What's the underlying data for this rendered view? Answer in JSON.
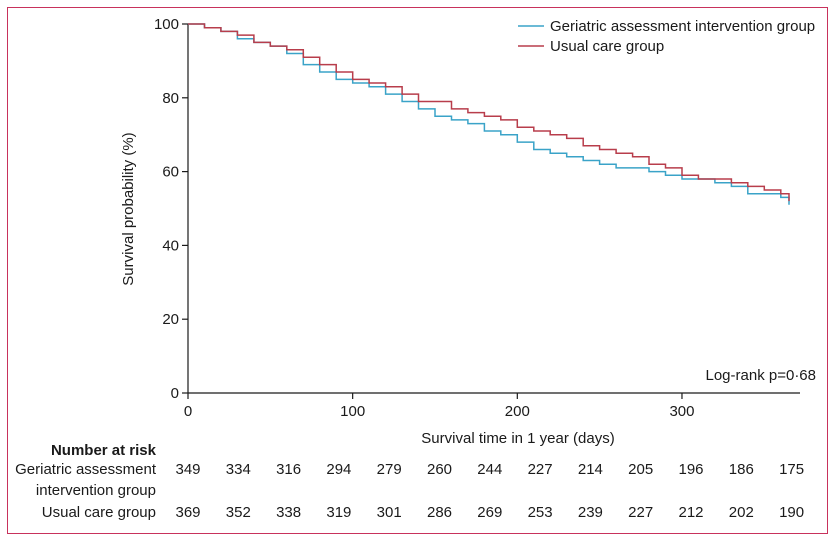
{
  "chart_data": {
    "type": "line",
    "xlabel": "Survival time in 1 year (days)",
    "ylabel": "Survival probability (%)",
    "xlim": [
      0,
      365
    ],
    "ylim": [
      0,
      100
    ],
    "xticks": [
      0,
      100,
      200,
      300
    ],
    "yticks": [
      0,
      20,
      40,
      60,
      80,
      100
    ],
    "grid": false,
    "legend_position": "top-right",
    "annotation": "Log-rank p=0·68",
    "series": [
      {
        "name": "Geriatric assessment intervention group",
        "color": "#3aa3c8",
        "x": [
          0,
          10,
          20,
          30,
          40,
          50,
          60,
          70,
          80,
          90,
          100,
          110,
          120,
          130,
          140,
          150,
          160,
          170,
          180,
          190,
          200,
          210,
          220,
          230,
          240,
          250,
          260,
          270,
          280,
          290,
          300,
          310,
          320,
          330,
          340,
          350,
          360,
          365
        ],
        "y": [
          100,
          99,
          98,
          96,
          95,
          94,
          92,
          89,
          87,
          85,
          84,
          83,
          81,
          79,
          77,
          75,
          74,
          73,
          71,
          70,
          68,
          66,
          65,
          64,
          63,
          62,
          61,
          61,
          60,
          59,
          58,
          58,
          57,
          56,
          54,
          54,
          53,
          51
        ]
      },
      {
        "name": "Usual care group",
        "color": "#b83d4b",
        "x": [
          0,
          10,
          20,
          30,
          40,
          50,
          60,
          70,
          80,
          90,
          100,
          110,
          120,
          130,
          140,
          150,
          160,
          170,
          180,
          190,
          200,
          210,
          220,
          230,
          240,
          250,
          260,
          270,
          280,
          290,
          300,
          310,
          320,
          330,
          340,
          350,
          360,
          365
        ],
        "y": [
          100,
          99,
          98,
          97,
          95,
          94,
          93,
          91,
          89,
          87,
          85,
          84,
          83,
          81,
          79,
          79,
          77,
          76,
          75,
          74,
          72,
          71,
          70,
          69,
          67,
          66,
          65,
          64,
          62,
          61,
          59,
          58,
          58,
          57,
          56,
          55,
          54,
          52
        ]
      }
    ]
  },
  "risk_table": {
    "heading": "Number at risk",
    "rows": [
      {
        "label_lines": [
          "Geriatric assessment",
          "intervention group"
        ],
        "values": [
          "349",
          "334",
          "316",
          "294",
          "279",
          "260",
          "244",
          "227",
          "214",
          "205",
          "196",
          "186",
          "175"
        ]
      },
      {
        "label_lines": [
          "Usual care group"
        ],
        "values": [
          "369",
          "352",
          "338",
          "319",
          "301",
          "286",
          "269",
          "253",
          "239",
          "227",
          "212",
          "202",
          "190"
        ]
      }
    ]
  }
}
